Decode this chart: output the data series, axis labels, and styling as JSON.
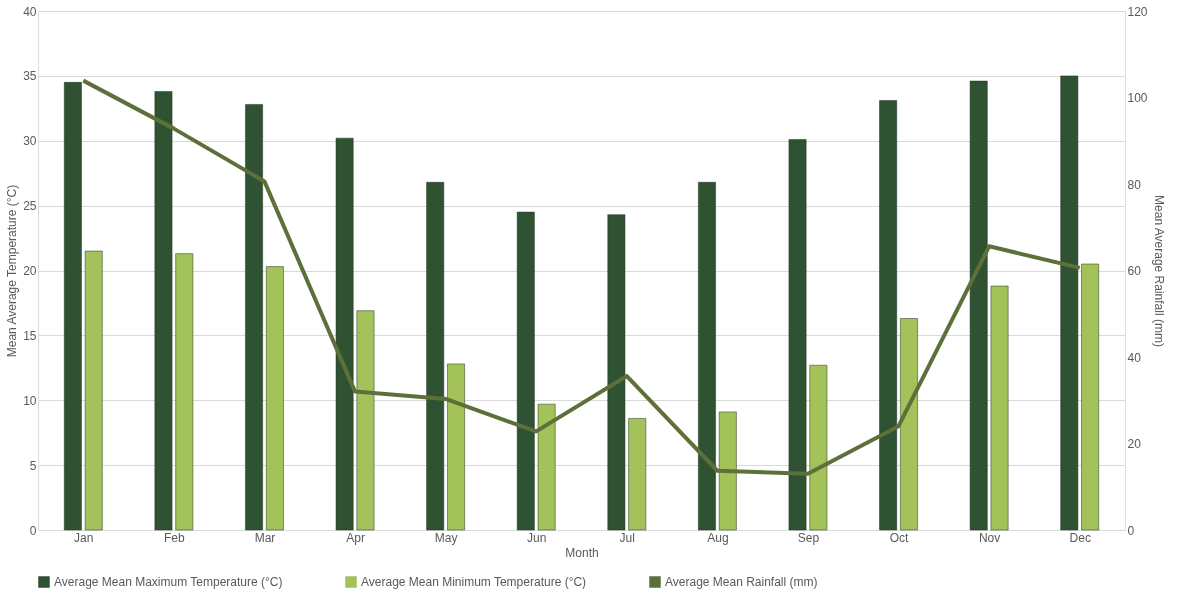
{
  "chart_data": {
    "type": "bar",
    "xlabel": "Month",
    "ylabel": "Mean Average Temperature (°C)",
    "y2label": "Mean Average Rainfall (mm)",
    "categories": [
      "Jan",
      "Feb",
      "Mar",
      "Apr",
      "May",
      "Jun",
      "Jul",
      "Aug",
      "Sep",
      "Oct",
      "Nov",
      "Dec"
    ],
    "series": [
      {
        "name": "Average Mean Maximum Temperature (°C)",
        "color": "#2f5233",
        "values": [
          34.5,
          33.8,
          32.8,
          30.2,
          26.8,
          24.5,
          24.3,
          26.8,
          30.1,
          33.1,
          34.6,
          35.0
        ]
      },
      {
        "name": "Average Mean Minimum Temperature (°C)",
        "color": "#a3c25a",
        "values": [
          21.5,
          21.3,
          20.3,
          16.9,
          12.8,
          9.7,
          8.6,
          9.1,
          12.7,
          16.3,
          18.8,
          20.5
        ]
      },
      {
        "name": "Average Mean Rainfall (mm)",
        "color": "#5e7039",
        "type": "line",
        "axis": "y2",
        "values": [
          103.9,
          92.8,
          80.6,
          32,
          30.3,
          22.8,
          35.6,
          13.7,
          13,
          24,
          65.6,
          60.6
        ]
      }
    ],
    "ylim": [
      0,
      40
    ],
    "yticks": [
      0,
      5,
      10,
      15,
      20,
      25,
      30,
      35,
      40
    ],
    "y2lim": [
      0,
      120
    ],
    "y2ticks": [
      0,
      20,
      40,
      60,
      80,
      100,
      120
    ],
    "grid": "y",
    "legend": "bottom"
  }
}
